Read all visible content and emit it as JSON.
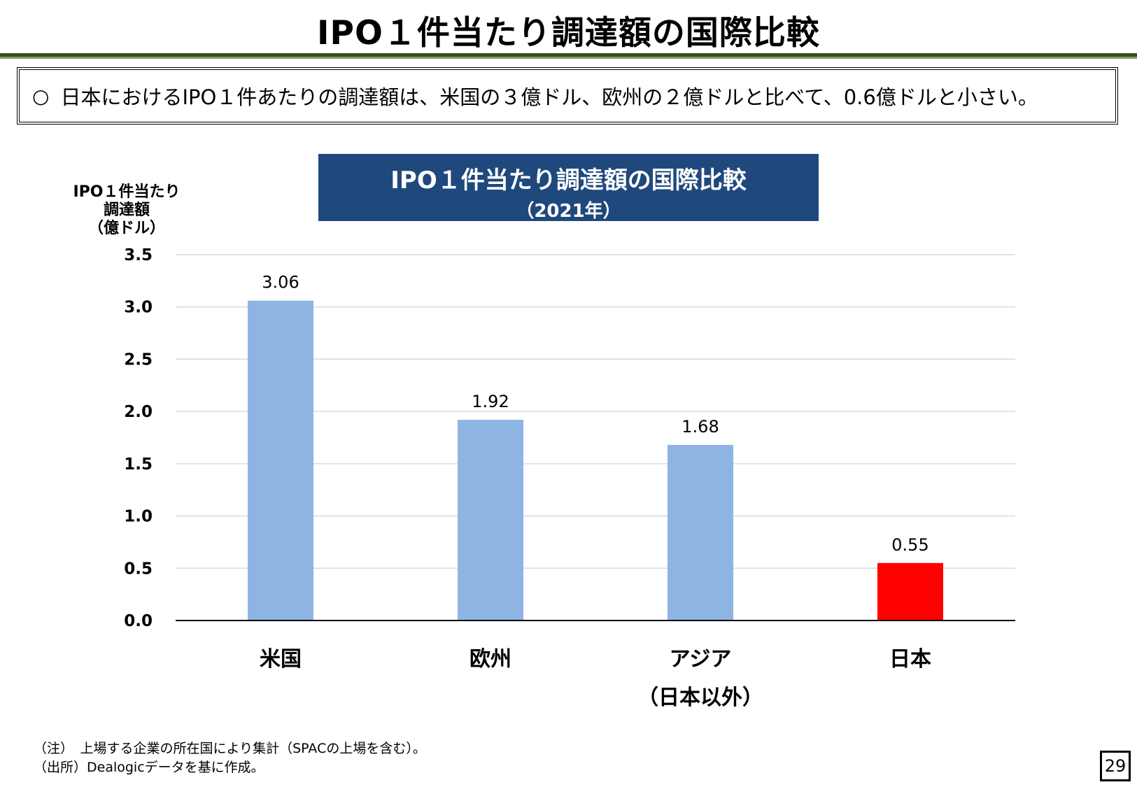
{
  "page": {
    "title": "IPO１件当たり調達額の国際比較",
    "summary_bullet": "○",
    "summary_text": "日本におけるIPO１件あたりの調達額は、米国の３億ドル、欧州の２億ドルと比べて、0.6億ドルと小さい。",
    "footnote_note": "（注）　上場する企業の所在国により集計（SPACの上場を含む）。",
    "footnote_source": "（出所）Dealogicデータを基に作成。",
    "page_number": "29"
  },
  "chart_data": {
    "type": "bar",
    "title": "IPO１件当たり調達額の国際比較",
    "subtitle": "（2021年）",
    "ylabel_lines": [
      "IPO１件当たり",
      "調達額",
      "（億ドル）"
    ],
    "categories": [
      [
        "米国"
      ],
      [
        "欧州"
      ],
      [
        "アジア",
        "（日本以外）"
      ],
      [
        "日本"
      ]
    ],
    "values": [
      3.06,
      1.92,
      1.68,
      0.55
    ],
    "value_labels": [
      "3.06",
      "1.92",
      "1.68",
      "0.55"
    ],
    "colors": [
      "#8eb4e3",
      "#8eb4e3",
      "#8eb4e3",
      "#ff0000"
    ],
    "ylim": [
      0,
      3.5
    ],
    "yticks": [
      0.0,
      0.5,
      1.0,
      1.5,
      2.0,
      2.5,
      3.0,
      3.5
    ],
    "ytick_labels": [
      "0.0",
      "0.5",
      "1.0",
      "1.5",
      "2.0",
      "2.5",
      "3.0",
      "3.5"
    ],
    "grid": true,
    "gridline_color": "#d9d9d9",
    "axis_color": "#000000"
  }
}
